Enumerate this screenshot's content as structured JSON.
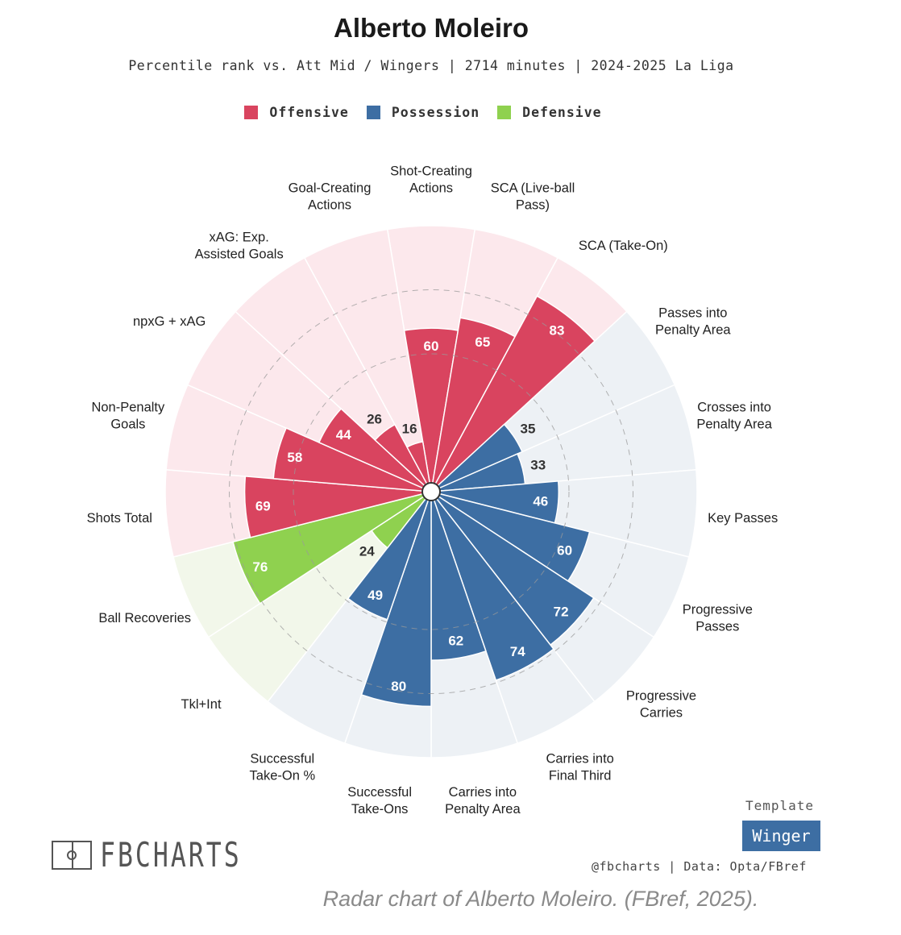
{
  "title": "Alberto Moleiro",
  "subtitle": "Percentile rank vs. Att Mid / Wingers | 2714 minutes | 2024-2025 La Liga",
  "legend": [
    {
      "label": "Offensive",
      "color": "#d9445f"
    },
    {
      "label": "Possession",
      "color": "#3d6ea3"
    },
    {
      "label": "Defensive",
      "color": "#8fd14f"
    }
  ],
  "template_label": "Template",
  "template_name": "Winger",
  "logo_text": "FBCHARTS",
  "credit": "@fbcharts | Data: Opta/FBref",
  "caption": "Radar chart of Alberto Moleiro. (FBref, 2025).",
  "chart_data": {
    "type": "radar",
    "scale_max": 100,
    "rings": [
      50,
      75
    ],
    "categories": [
      {
        "name": "Offensive",
        "color": "#d9445f",
        "background": "#fce8ec"
      },
      {
        "name": "Possession",
        "color": "#3d6ea3",
        "background": "#edf1f5"
      },
      {
        "name": "Defensive",
        "color": "#8fd14f",
        "background": "#f2f7ea"
      }
    ],
    "metrics": [
      {
        "label": "Shot-Creating\nActions",
        "value": 60,
        "category": "Offensive"
      },
      {
        "label": "SCA (Live-ball\nPass)",
        "value": 65,
        "category": "Offensive"
      },
      {
        "label": "SCA (Take-On)",
        "value": 83,
        "category": "Offensive"
      },
      {
        "label": "Passes into\nPenalty Area",
        "value": 35,
        "category": "Possession"
      },
      {
        "label": "Crosses into\nPenalty Area",
        "value": 33,
        "category": "Possession"
      },
      {
        "label": "Key Passes",
        "value": 46,
        "category": "Possession"
      },
      {
        "label": "Progressive\nPasses",
        "value": 60,
        "category": "Possession"
      },
      {
        "label": "Progressive\nCarries",
        "value": 72,
        "category": "Possession"
      },
      {
        "label": "Carries into\nFinal Third",
        "value": 74,
        "category": "Possession"
      },
      {
        "label": "Carries into\nPenalty Area",
        "value": 62,
        "category": "Possession"
      },
      {
        "label": "Successful\nTake-Ons",
        "value": 80,
        "category": "Possession"
      },
      {
        "label": "Successful\nTake-On %",
        "value": 49,
        "category": "Possession"
      },
      {
        "label": "Tkl+Int",
        "value": 24,
        "category": "Defensive"
      },
      {
        "label": "Ball Recoveries",
        "value": 76,
        "category": "Defensive"
      },
      {
        "label": "Shots Total",
        "value": 69,
        "category": "Offensive"
      },
      {
        "label": "Non-Penalty\nGoals",
        "value": 58,
        "category": "Offensive"
      },
      {
        "label": "npxG + xAG",
        "value": 44,
        "category": "Offensive"
      },
      {
        "label": "xAG: Exp.\nAssisted Goals",
        "value": 26,
        "category": "Offensive"
      },
      {
        "label": "Goal-Creating\nActions",
        "value": 16,
        "category": "Offensive"
      }
    ]
  }
}
